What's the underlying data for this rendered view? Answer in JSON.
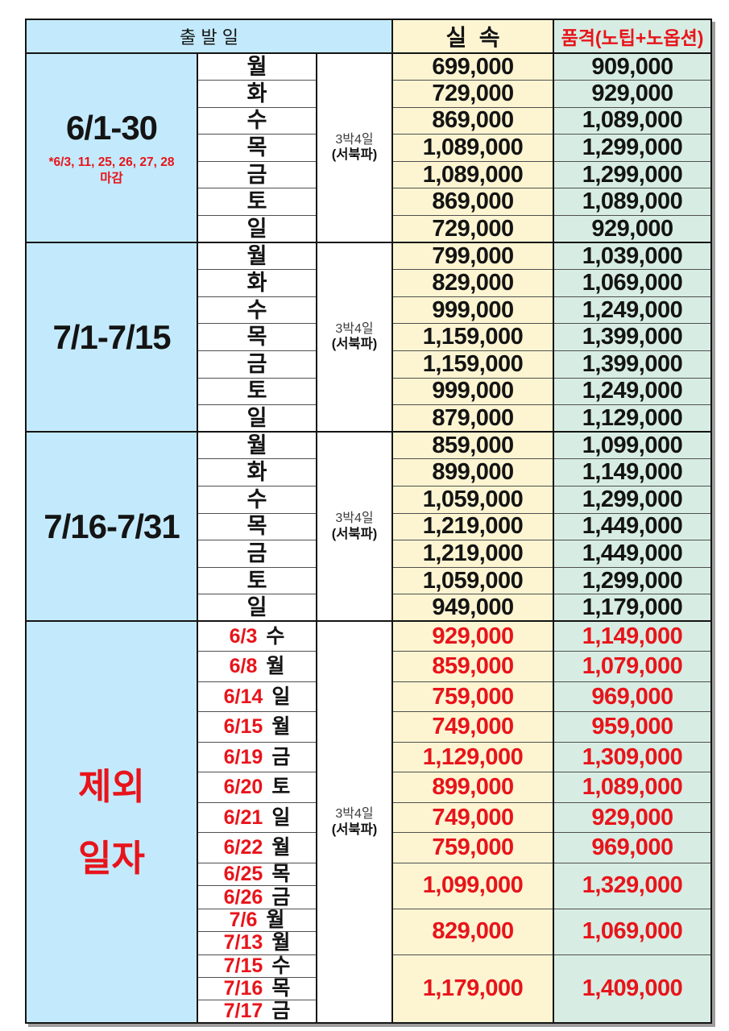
{
  "header": {
    "departure_label": "출 발 일",
    "budget_label": "실  속",
    "premium_label": "품격(노팁+노옵션)"
  },
  "duration": {
    "line1": "3박4일",
    "line2": "(서북파)"
  },
  "colors": {
    "period_bg": "#c3eafc",
    "budget_bg": "#fdf5d2",
    "premium_bg": "#d7ede3",
    "red_text": "#e8141b",
    "black_text": "#141414"
  },
  "sections": [
    {
      "period": "6/1-30",
      "note_line1": "*6/3, 11, 25, 26, 27, 28",
      "note_line2": "마감",
      "rows": [
        {
          "day": "월",
          "budget": "699,000",
          "premium": "909,000"
        },
        {
          "day": "화",
          "budget": "729,000",
          "premium": "929,000"
        },
        {
          "day": "수",
          "budget": "869,000",
          "premium": "1,089,000"
        },
        {
          "day": "목",
          "budget": "1,089,000",
          "premium": "1,299,000"
        },
        {
          "day": "금",
          "budget": "1,089,000",
          "premium": "1,299,000"
        },
        {
          "day": "토",
          "budget": "869,000",
          "premium": "1,089,000"
        },
        {
          "day": "일",
          "budget": "729,000",
          "premium": "929,000"
        }
      ]
    },
    {
      "period": "7/1-7/15",
      "rows": [
        {
          "day": "월",
          "budget": "799,000",
          "premium": "1,039,000"
        },
        {
          "day": "화",
          "budget": "829,000",
          "premium": "1,069,000"
        },
        {
          "day": "수",
          "budget": "999,000",
          "premium": "1,249,000"
        },
        {
          "day": "목",
          "budget": "1,159,000",
          "premium": "1,399,000"
        },
        {
          "day": "금",
          "budget": "1,159,000",
          "premium": "1,399,000"
        },
        {
          "day": "토",
          "budget": "999,000",
          "premium": "1,249,000"
        },
        {
          "day": "일",
          "budget": "879,000",
          "premium": "1,129,000"
        }
      ]
    },
    {
      "period": "7/16-7/31",
      "rows": [
        {
          "day": "월",
          "budget": "859,000",
          "premium": "1,099,000"
        },
        {
          "day": "화",
          "budget": "899,000",
          "premium": "1,149,000"
        },
        {
          "day": "수",
          "budget": "1,059,000",
          "premium": "1,299,000"
        },
        {
          "day": "목",
          "budget": "1,219,000",
          "premium": "1,449,000"
        },
        {
          "day": "금",
          "budget": "1,219,000",
          "premium": "1,449,000"
        },
        {
          "day": "토",
          "budget": "1,059,000",
          "premium": "1,299,000"
        },
        {
          "day": "일",
          "budget": "949,000",
          "premium": "1,179,000"
        }
      ]
    }
  ],
  "excluded": {
    "label_line1": "제외",
    "label_line2": "일자",
    "rows": [
      {
        "date": "6/3",
        "day": "수",
        "budget": "929,000",
        "premium": "1,149,000",
        "rowspan": 1,
        "size": "tall"
      },
      {
        "date": "6/8",
        "day": "월",
        "budget": "859,000",
        "premium": "1,079,000",
        "rowspan": 1,
        "size": "tall"
      },
      {
        "date": "6/14",
        "day": "일",
        "budget": "759,000",
        "premium": "969,000",
        "rowspan": 1,
        "size": "tall"
      },
      {
        "date": "6/15",
        "day": "월",
        "budget": "749,000",
        "premium": "959,000",
        "rowspan": 1,
        "size": "tall"
      },
      {
        "date": "6/19",
        "day": "금",
        "budget": "1,129,000",
        "premium": "1,309,000",
        "rowspan": 1,
        "size": "tall"
      },
      {
        "date": "6/20",
        "day": "토",
        "budget": "899,000",
        "premium": "1,089,000",
        "rowspan": 1,
        "size": "tall"
      },
      {
        "date": "6/21",
        "day": "일",
        "budget": "749,000",
        "premium": "929,000",
        "rowspan": 1,
        "size": "tall"
      },
      {
        "date": "6/22",
        "day": "월",
        "budget": "759,000",
        "premium": "969,000",
        "rowspan": 1,
        "size": "tall"
      },
      {
        "date": "6/25",
        "day": "목",
        "budget": "1,099,000",
        "premium": "1,329,000",
        "rowspan": 2,
        "size": "short"
      },
      {
        "date": "6/26",
        "day": "금",
        "rowspan": 0,
        "size": "short"
      },
      {
        "date": "7/6",
        "day": "월",
        "budget": "829,000",
        "premium": "1,069,000",
        "rowspan": 2,
        "size": "short"
      },
      {
        "date": "7/13",
        "day": "월",
        "rowspan": 0,
        "size": "short"
      },
      {
        "date": "7/15",
        "day": "수",
        "budget": "1,179,000",
        "premium": "1,409,000",
        "rowspan": 3,
        "size": "short"
      },
      {
        "date": "7/16",
        "day": "목",
        "rowspan": 0,
        "size": "short"
      },
      {
        "date": "7/17",
        "day": "금",
        "rowspan": 0,
        "size": "short"
      }
    ]
  }
}
